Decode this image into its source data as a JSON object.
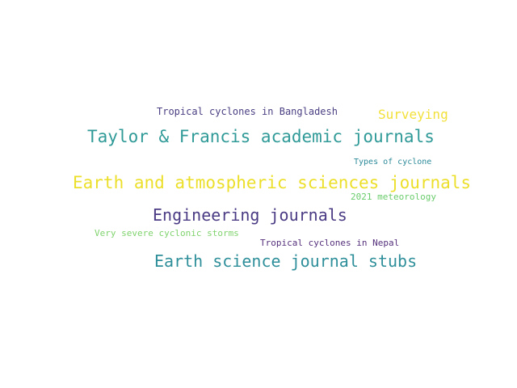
{
  "words": [
    {
      "text": "Tropical cyclones in Bangladesh",
      "color": "#4a3f83"
    },
    {
      "text": "Surveying",
      "color": "#f2e13a"
    },
    {
      "text": "Taylor & Francis academic journals",
      "color": "#2f9a97"
    },
    {
      "text": "Types of cyclone",
      "color": "#2c8a99"
    },
    {
      "text": "Earth and atmospheric sciences journals",
      "color": "#ecdf2a"
    },
    {
      "text": "2021 meteorology",
      "color": "#69cc6b"
    },
    {
      "text": "Engineering journals",
      "color": "#4b3b84"
    },
    {
      "text": "Very severe cyclonic storms",
      "color": "#7fd36d"
    },
    {
      "text": "Tropical cyclones in Nepal",
      "color": "#55307c"
    },
    {
      "text": "Earth science journal stubs",
      "color": "#2e8f9a"
    }
  ]
}
